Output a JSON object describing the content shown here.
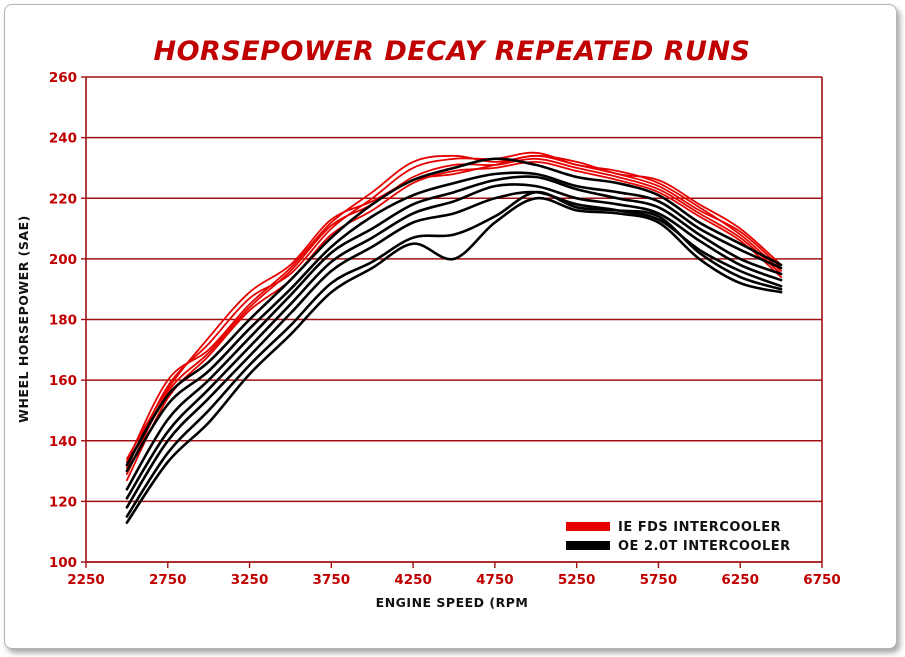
{
  "chart_data": {
    "type": "line",
    "title": "HORSEPOWER DECAY REPEATED RUNS",
    "xlabel": "ENGINE SPEED (RPM",
    "ylabel": "WHEEL HORSEPOWER (SAE)",
    "xlim": [
      2250,
      6750
    ],
    "ylim": [
      100,
      260
    ],
    "xticks": [
      "2250",
      "2750",
      "3250",
      "3750",
      "4250",
      "4750",
      "5250",
      "5750",
      "6250",
      "6750"
    ],
    "yticks": [
      "100",
      "120",
      "140",
      "160",
      "180",
      "200",
      "220",
      "240",
      "260"
    ],
    "grid": "horizontal",
    "legend_position": "bottom-right",
    "colors": {
      "ie": "#e60000",
      "oe": "#000000",
      "grid": "#a01010",
      "text": "#c00000"
    },
    "legend": [
      {
        "label": "IE FDS INTERCOOLER",
        "color": "#e60000"
      },
      {
        "label": "OE 2.0T INTERCOOLER",
        "color": "#000000"
      }
    ],
    "x": [
      2500,
      2750,
      3000,
      3250,
      3500,
      3750,
      4000,
      4250,
      4500,
      4750,
      5000,
      5250,
      5500,
      5750,
      6000,
      6250,
      6500
    ],
    "series": [
      {
        "group": "ie",
        "values": [
          133,
          160,
          170,
          185,
          197,
          212,
          222,
          232,
          234,
          232,
          234,
          232,
          228,
          226,
          218,
          210,
          198
        ]
      },
      {
        "group": "ie",
        "values": [
          131,
          158,
          172,
          187,
          195,
          210,
          220,
          230,
          233,
          233,
          235,
          231,
          229,
          225,
          217,
          208,
          196
        ]
      },
      {
        "group": "ie",
        "values": [
          129,
          156,
          169,
          184,
          196,
          211,
          218,
          227,
          231,
          231,
          233,
          230,
          227,
          223,
          215,
          207,
          195
        ]
      },
      {
        "group": "ie",
        "values": [
          127,
          154,
          168,
          183,
          193,
          208,
          216,
          225,
          229,
          230,
          232,
          229,
          226,
          222,
          214,
          206,
          194
        ]
      },
      {
        "group": "ie",
        "values": [
          134,
          157,
          174,
          189,
          198,
          213,
          219,
          226,
          228,
          231,
          234,
          231,
          228,
          224,
          216,
          209,
          197
        ]
      },
      {
        "group": "oe",
        "values": [
          132,
          155,
          166,
          180,
          193,
          207,
          218,
          226,
          230,
          233,
          231,
          227,
          225,
          221,
          212,
          205,
          198
        ]
      },
      {
        "group": "oe",
        "values": [
          130,
          152,
          163,
          177,
          190,
          204,
          214,
          221,
          225,
          228,
          228,
          224,
          222,
          219,
          210,
          203,
          197
        ]
      },
      {
        "group": "oe",
        "values": [
          124,
          147,
          160,
          174,
          188,
          202,
          210,
          218,
          222,
          226,
          227,
          223,
          220,
          217,
          208,
          200,
          195
        ]
      },
      {
        "group": "oe",
        "values": [
          121,
          143,
          157,
          171,
          185,
          199,
          207,
          215,
          219,
          224,
          224,
          220,
          218,
          215,
          206,
          198,
          193
        ]
      },
      {
        "group": "oe",
        "values": [
          118,
          140,
          154,
          168,
          182,
          196,
          204,
          212,
          215,
          220,
          222,
          218,
          216,
          213,
          203,
          196,
          191
        ]
      },
      {
        "group": "oe",
        "values": [
          115,
          136,
          150,
          165,
          178,
          192,
          199,
          207,
          208,
          214,
          222,
          217,
          216,
          214,
          202,
          194,
          190
        ]
      },
      {
        "group": "oe",
        "values": [
          113,
          133,
          146,
          162,
          175,
          189,
          197,
          205,
          200,
          212,
          220,
          216,
          215,
          212,
          200,
          192,
          189
        ]
      }
    ]
  }
}
